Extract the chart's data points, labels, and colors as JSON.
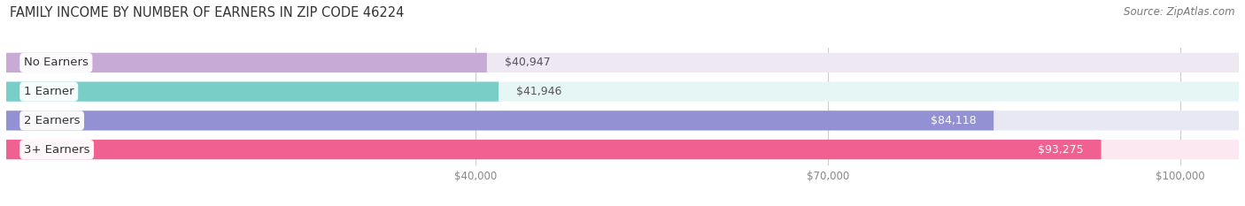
{
  "title": "FAMILY INCOME BY NUMBER OF EARNERS IN ZIP CODE 46224",
  "source": "Source: ZipAtlas.com",
  "categories": [
    "No Earners",
    "1 Earner",
    "2 Earners",
    "3+ Earners"
  ],
  "values": [
    40947,
    41946,
    84118,
    93275
  ],
  "labels": [
    "$40,947",
    "$41,946",
    "$84,118",
    "$93,275"
  ],
  "bar_colors": [
    "#c8aad6",
    "#79cfc8",
    "#9191d4",
    "#f06090"
  ],
  "bar_bg_colors": [
    "#ede8f2",
    "#e6f6f5",
    "#e8e8f5",
    "#fbe8f0"
  ],
  "label_colors": [
    "#555555",
    "#555555",
    "#ffffff",
    "#ffffff"
  ],
  "xmin": 0,
  "xmax": 105000,
  "xtick_positions": [
    40000,
    70000,
    100000
  ],
  "xticklabels": [
    "$40,000",
    "$70,000",
    "$100,000"
  ],
  "title_fontsize": 10.5,
  "source_fontsize": 8.5,
  "value_fontsize": 9,
  "category_fontsize": 9.5,
  "bar_height": 0.68,
  "fig_width": 14.06,
  "fig_height": 2.33,
  "background_color": "#ffffff",
  "grid_color": "#cccccc",
  "tick_color": "#888888"
}
